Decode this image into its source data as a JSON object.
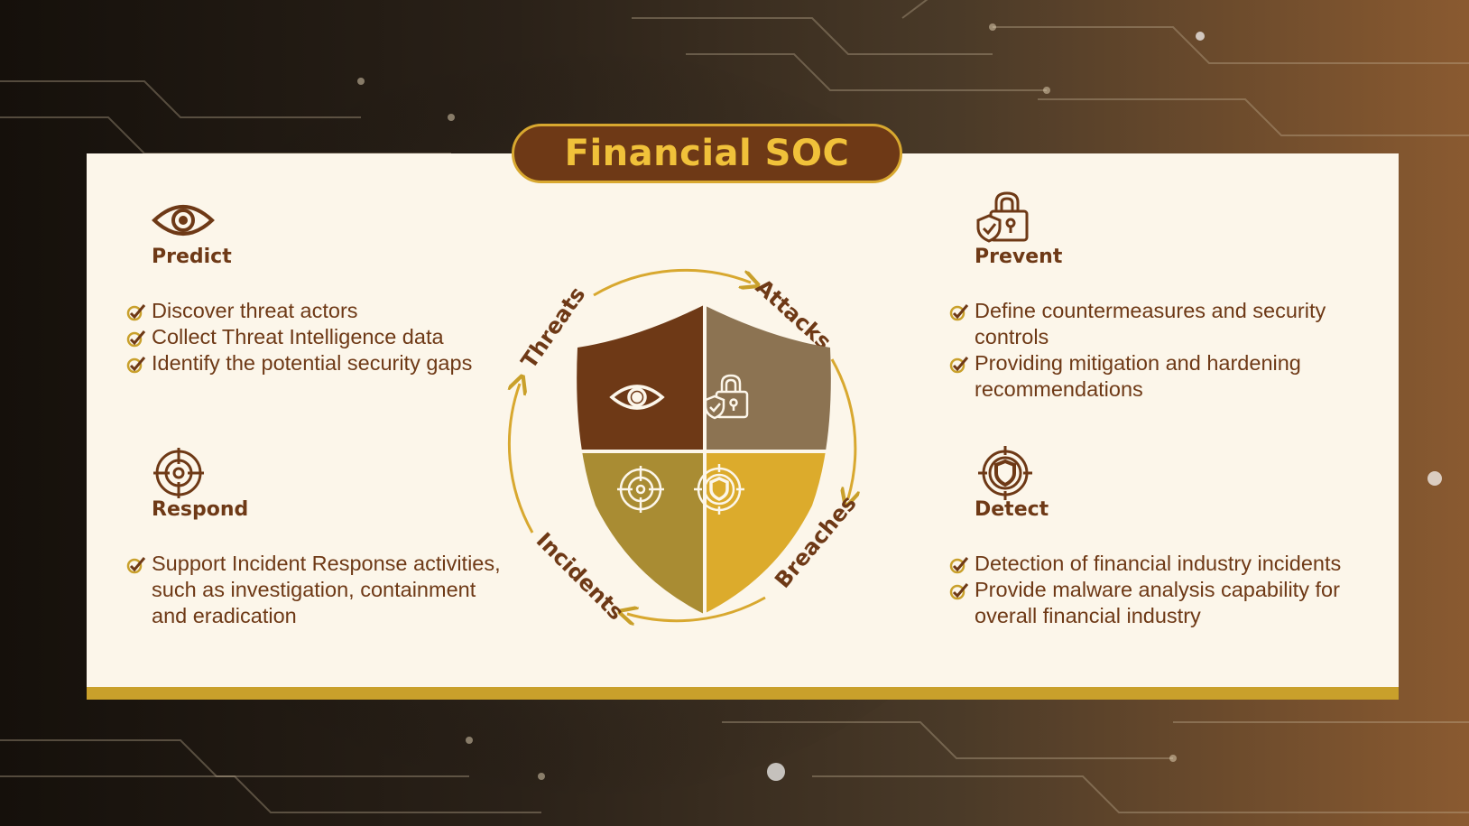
{
  "title": "Financial SOC",
  "colors": {
    "dark_brown": "#6e3916",
    "taupe": "#8c7352",
    "olive_gold": "#a98c33",
    "gold": "#dcab2c",
    "cream": "#fcf6ea"
  },
  "sections": {
    "predict": {
      "title": "Predict",
      "icon": "eye-icon",
      "bullets": [
        "Discover threat actors",
        "Collect Threat Intelligence data",
        "Identify the potential security gaps"
      ]
    },
    "respond": {
      "title": "Respond",
      "icon": "target-icon",
      "bullets": [
        "Support Incident Response activities, such as investigation, containment and eradication"
      ]
    },
    "prevent": {
      "title": "Prevent",
      "icon": "padlock-shield-icon",
      "bullets": [
        "Define countermeasures and security controls",
        "Providing mitigation and hardening recommendations"
      ]
    },
    "detect": {
      "title": "Detect",
      "icon": "shield-target-icon",
      "bullets": [
        "Detection of financial industry incidents",
        "Provide malware analysis capability for overall financial industry"
      ]
    }
  },
  "cycle": {
    "labels": [
      "Threats",
      "Attacks",
      "Breaches",
      "Incidents"
    ]
  }
}
